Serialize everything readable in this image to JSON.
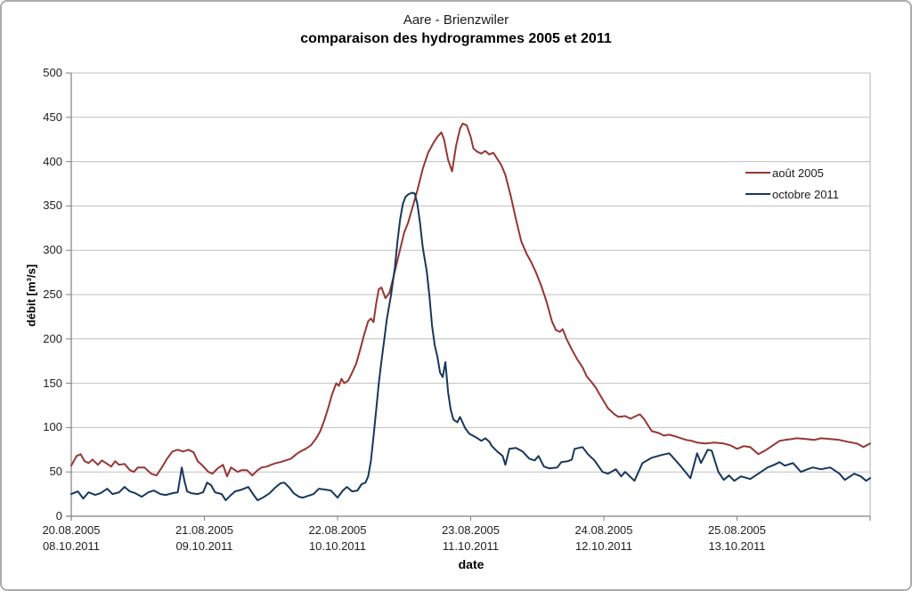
{
  "chart_data": {
    "type": "line",
    "title": "Aare - Brienzwiler",
    "subtitle": "comparaison des hydrogrammes 2005 et 2011",
    "xlabel": "date",
    "ylabel": "débit [m³/s]",
    "ylim": [
      0,
      500
    ],
    "yticks": [
      0,
      50,
      100,
      150,
      200,
      250,
      300,
      350,
      400,
      450,
      500
    ],
    "x_range_days": [
      0,
      6
    ],
    "x_tick_labels": [
      [
        "20.08.2005",
        "08.10.2011"
      ],
      [
        "21.08.2005",
        "09.10.2011"
      ],
      [
        "22.08.2005",
        "10.10.2011"
      ],
      [
        "23.08.2005",
        "11.10.2011"
      ],
      [
        "24.08.2005",
        "12.10.2011"
      ],
      [
        "25.08.2005",
        "13.10.2011"
      ]
    ],
    "grid": true,
    "legend_position": "inside-right",
    "series": [
      {
        "name": "août 2005",
        "color": "#963634",
        "points": [
          [
            0.0,
            57
          ],
          [
            0.04,
            68
          ],
          [
            0.07,
            70
          ],
          [
            0.1,
            62
          ],
          [
            0.13,
            60
          ],
          [
            0.16,
            64
          ],
          [
            0.2,
            58
          ],
          [
            0.23,
            63
          ],
          [
            0.26,
            60
          ],
          [
            0.3,
            56
          ],
          [
            0.33,
            62
          ],
          [
            0.36,
            58
          ],
          [
            0.4,
            59
          ],
          [
            0.44,
            52
          ],
          [
            0.47,
            50
          ],
          [
            0.5,
            55
          ],
          [
            0.55,
            55
          ],
          [
            0.6,
            48
          ],
          [
            0.64,
            46
          ],
          [
            0.68,
            55
          ],
          [
            0.72,
            65
          ],
          [
            0.76,
            73
          ],
          [
            0.8,
            75
          ],
          [
            0.84,
            73
          ],
          [
            0.88,
            75
          ],
          [
            0.92,
            72
          ],
          [
            0.95,
            62
          ],
          [
            0.98,
            58
          ],
          [
            1.03,
            50
          ],
          [
            1.06,
            48
          ],
          [
            1.1,
            54
          ],
          [
            1.14,
            58
          ],
          [
            1.17,
            45
          ],
          [
            1.2,
            55
          ],
          [
            1.25,
            50
          ],
          [
            1.28,
            52
          ],
          [
            1.32,
            52
          ],
          [
            1.36,
            46
          ],
          [
            1.4,
            52
          ],
          [
            1.43,
            55
          ],
          [
            1.47,
            56
          ],
          [
            1.5,
            58
          ],
          [
            1.54,
            60
          ],
          [
            1.57,
            61
          ],
          [
            1.61,
            63
          ],
          [
            1.65,
            65
          ],
          [
            1.69,
            70
          ],
          [
            1.72,
            73
          ],
          [
            1.76,
            76
          ],
          [
            1.8,
            80
          ],
          [
            1.84,
            88
          ],
          [
            1.87,
            96
          ],
          [
            1.9,
            108
          ],
          [
            1.93,
            122
          ],
          [
            1.96,
            138
          ],
          [
            1.99,
            150
          ],
          [
            2.01,
            147
          ],
          [
            2.03,
            155
          ],
          [
            2.05,
            150
          ],
          [
            2.08,
            153
          ],
          [
            2.11,
            162
          ],
          [
            2.14,
            172
          ],
          [
            2.17,
            188
          ],
          [
            2.2,
            205
          ],
          [
            2.23,
            220
          ],
          [
            2.25,
            223
          ],
          [
            2.27,
            219
          ],
          [
            2.29,
            240
          ],
          [
            2.31,
            256
          ],
          [
            2.33,
            258
          ],
          [
            2.36,
            246
          ],
          [
            2.39,
            252
          ],
          [
            2.42,
            270
          ],
          [
            2.46,
            295
          ],
          [
            2.5,
            320
          ],
          [
            2.53,
            331
          ],
          [
            2.57,
            352
          ],
          [
            2.6,
            368
          ],
          [
            2.64,
            392
          ],
          [
            2.68,
            410
          ],
          [
            2.72,
            421
          ],
          [
            2.75,
            428
          ],
          [
            2.78,
            433
          ],
          [
            2.8,
            425
          ],
          [
            2.83,
            402
          ],
          [
            2.86,
            389
          ],
          [
            2.89,
            418
          ],
          [
            2.92,
            437
          ],
          [
            2.94,
            443
          ],
          [
            2.97,
            441
          ],
          [
            3.0,
            428
          ],
          [
            3.02,
            415
          ],
          [
            3.05,
            411
          ],
          [
            3.08,
            409
          ],
          [
            3.11,
            412
          ],
          [
            3.14,
            408
          ],
          [
            3.17,
            410
          ],
          [
            3.2,
            403
          ],
          [
            3.23,
            396
          ],
          [
            3.26,
            385
          ],
          [
            3.3,
            362
          ],
          [
            3.34,
            335
          ],
          [
            3.38,
            310
          ],
          [
            3.42,
            296
          ],
          [
            3.45,
            288
          ],
          [
            3.49,
            275
          ],
          [
            3.53,
            260
          ],
          [
            3.57,
            242
          ],
          [
            3.61,
            220
          ],
          [
            3.64,
            210
          ],
          [
            3.67,
            208
          ],
          [
            3.69,
            211
          ],
          [
            3.72,
            200
          ],
          [
            3.76,
            188
          ],
          [
            3.8,
            177
          ],
          [
            3.84,
            168
          ],
          [
            3.87,
            158
          ],
          [
            3.91,
            151
          ],
          [
            3.94,
            145
          ],
          [
            3.97,
            137
          ],
          [
            4.03,
            122
          ],
          [
            4.08,
            115
          ],
          [
            4.11,
            112
          ],
          [
            4.16,
            113
          ],
          [
            4.2,
            110
          ],
          [
            4.24,
            113
          ],
          [
            4.27,
            115
          ],
          [
            4.3,
            110
          ],
          [
            4.33,
            103
          ],
          [
            4.36,
            96
          ],
          [
            4.41,
            94
          ],
          [
            4.45,
            91
          ],
          [
            4.49,
            92
          ],
          [
            4.54,
            90
          ],
          [
            4.58,
            88
          ],
          [
            4.62,
            86
          ],
          [
            4.66,
            85
          ],
          [
            4.7,
            83
          ],
          [
            4.76,
            82
          ],
          [
            4.83,
            83
          ],
          [
            4.9,
            82
          ],
          [
            4.95,
            80
          ],
          [
            5.0,
            76
          ],
          [
            5.05,
            79
          ],
          [
            5.1,
            78
          ],
          [
            5.16,
            70
          ],
          [
            5.21,
            74
          ],
          [
            5.27,
            80
          ],
          [
            5.32,
            85
          ],
          [
            5.36,
            86
          ],
          [
            5.45,
            88
          ],
          [
            5.52,
            87
          ],
          [
            5.58,
            86
          ],
          [
            5.63,
            88
          ],
          [
            5.7,
            87
          ],
          [
            5.77,
            86
          ],
          [
            5.83,
            84
          ],
          [
            5.9,
            82
          ],
          [
            5.95,
            78
          ],
          [
            6.0,
            82
          ]
        ]
      },
      {
        "name": "octobre 2011",
        "color": "#17375D",
        "points": [
          [
            0.0,
            25
          ],
          [
            0.05,
            28
          ],
          [
            0.09,
            20
          ],
          [
            0.13,
            27
          ],
          [
            0.18,
            24
          ],
          [
            0.22,
            26
          ],
          [
            0.27,
            31
          ],
          [
            0.31,
            25
          ],
          [
            0.36,
            27
          ],
          [
            0.4,
            33
          ],
          [
            0.44,
            28
          ],
          [
            0.48,
            26
          ],
          [
            0.53,
            22
          ],
          [
            0.58,
            27
          ],
          [
            0.62,
            29
          ],
          [
            0.67,
            25
          ],
          [
            0.71,
            24
          ],
          [
            0.76,
            26
          ],
          [
            0.8,
            27
          ],
          [
            0.83,
            55
          ],
          [
            0.85,
            40
          ],
          [
            0.87,
            28
          ],
          [
            0.9,
            26
          ],
          [
            0.95,
            25
          ],
          [
            0.99,
            27
          ],
          [
            1.02,
            38
          ],
          [
            1.05,
            35
          ],
          [
            1.08,
            27
          ],
          [
            1.13,
            25
          ],
          [
            1.16,
            18
          ],
          [
            1.2,
            24
          ],
          [
            1.23,
            28
          ],
          [
            1.28,
            30
          ],
          [
            1.33,
            33
          ],
          [
            1.37,
            24
          ],
          [
            1.4,
            18
          ],
          [
            1.45,
            22
          ],
          [
            1.49,
            26
          ],
          [
            1.53,
            32
          ],
          [
            1.57,
            37
          ],
          [
            1.6,
            38
          ],
          [
            1.64,
            32
          ],
          [
            1.67,
            26
          ],
          [
            1.71,
            22
          ],
          [
            1.74,
            21
          ],
          [
            1.78,
            23
          ],
          [
            1.82,
            25
          ],
          [
            1.86,
            31
          ],
          [
            1.91,
            30
          ],
          [
            1.95,
            29
          ],
          [
            2.0,
            21
          ],
          [
            2.04,
            29
          ],
          [
            2.07,
            33
          ],
          [
            2.11,
            28
          ],
          [
            2.15,
            29
          ],
          [
            2.18,
            36
          ],
          [
            2.21,
            38
          ],
          [
            2.23,
            45
          ],
          [
            2.25,
            62
          ],
          [
            2.27,
            90
          ],
          [
            2.29,
            120
          ],
          [
            2.31,
            150
          ],
          [
            2.33,
            175
          ],
          [
            2.35,
            198
          ],
          [
            2.37,
            222
          ],
          [
            2.4,
            248
          ],
          [
            2.43,
            280
          ],
          [
            2.45,
            310
          ],
          [
            2.47,
            335
          ],
          [
            2.49,
            352
          ],
          [
            2.51,
            360
          ],
          [
            2.53,
            363
          ],
          [
            2.56,
            365
          ],
          [
            2.58,
            364
          ],
          [
            2.6,
            352
          ],
          [
            2.62,
            330
          ],
          [
            2.64,
            303
          ],
          [
            2.67,
            276
          ],
          [
            2.69,
            248
          ],
          [
            2.71,
            215
          ],
          [
            2.73,
            193
          ],
          [
            2.75,
            180
          ],
          [
            2.77,
            162
          ],
          [
            2.79,
            157
          ],
          [
            2.81,
            174
          ],
          [
            2.83,
            140
          ],
          [
            2.85,
            120
          ],
          [
            2.87,
            109
          ],
          [
            2.9,
            106
          ],
          [
            2.92,
            112
          ],
          [
            2.96,
            99
          ],
          [
            2.99,
            93
          ],
          [
            3.04,
            89
          ],
          [
            3.08,
            85
          ],
          [
            3.11,
            88
          ],
          [
            3.14,
            84
          ],
          [
            3.16,
            79
          ],
          [
            3.2,
            73
          ],
          [
            3.24,
            68
          ],
          [
            3.26,
            58
          ],
          [
            3.29,
            76
          ],
          [
            3.34,
            77
          ],
          [
            3.39,
            73
          ],
          [
            3.44,
            65
          ],
          [
            3.48,
            63
          ],
          [
            3.51,
            68
          ],
          [
            3.55,
            56
          ],
          [
            3.59,
            54
          ],
          [
            3.65,
            55
          ],
          [
            3.68,
            61
          ],
          [
            3.73,
            62
          ],
          [
            3.76,
            64
          ],
          [
            3.78,
            76
          ],
          [
            3.84,
            78
          ],
          [
            3.88,
            70
          ],
          [
            3.93,
            63
          ],
          [
            3.99,
            50
          ],
          [
            4.03,
            48
          ],
          [
            4.09,
            53
          ],
          [
            4.13,
            45
          ],
          [
            4.16,
            50
          ],
          [
            4.23,
            40
          ],
          [
            4.29,
            60
          ],
          [
            4.36,
            66
          ],
          [
            4.43,
            69
          ],
          [
            4.49,
            71
          ],
          [
            4.51,
            68
          ],
          [
            4.58,
            56
          ],
          [
            4.65,
            43
          ],
          [
            4.7,
            71
          ],
          [
            4.73,
            60
          ],
          [
            4.78,
            75
          ],
          [
            4.81,
            74
          ],
          [
            4.86,
            50
          ],
          [
            4.9,
            41
          ],
          [
            4.94,
            46
          ],
          [
            4.98,
            40
          ],
          [
            5.03,
            45
          ],
          [
            5.1,
            42
          ],
          [
            5.18,
            50
          ],
          [
            5.23,
            55
          ],
          [
            5.28,
            58
          ],
          [
            5.32,
            61
          ],
          [
            5.36,
            57
          ],
          [
            5.42,
            60
          ],
          [
            5.48,
            50
          ],
          [
            5.53,
            53
          ],
          [
            5.57,
            55
          ],
          [
            5.63,
            53
          ],
          [
            5.7,
            55
          ],
          [
            5.77,
            48
          ],
          [
            5.81,
            41
          ],
          [
            5.85,
            45
          ],
          [
            5.88,
            48
          ],
          [
            5.93,
            45
          ],
          [
            5.97,
            40
          ],
          [
            6.0,
            43
          ]
        ]
      }
    ]
  },
  "colors": {
    "background": "#FFFFFF",
    "frame_border": "#ABABAB",
    "gridline": "#BFBFBF",
    "axis": "#808080",
    "text": "#1A1A1A"
  }
}
